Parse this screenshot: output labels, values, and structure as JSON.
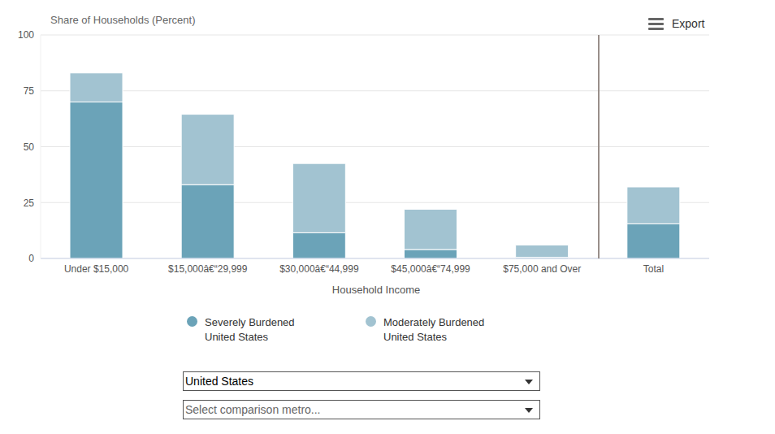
{
  "chart_data": {
    "type": "bar",
    "stacked": true,
    "title": "Share of Households (Percent)",
    "x_label": "Household Income",
    "categories": [
      "Under $15,000",
      "$15,000â€“29,999",
      "$30,000â€“44,999",
      "$45,000â€“74,999",
      "$75,000 and Over",
      "Total"
    ],
    "series": [
      {
        "name": "Severely Burdened United States",
        "color": "#6ba3b8",
        "values": [
          70,
          33,
          11.5,
          4,
          0.5,
          15.5
        ]
      },
      {
        "name": "Moderately Burdened United States",
        "color": "#a2c3d1",
        "values": [
          13,
          31.5,
          31,
          18,
          5.5,
          16.5
        ]
      }
    ],
    "ylim": [
      0,
      100
    ],
    "yticks": [
      0,
      25,
      50,
      75,
      100
    ],
    "grid": true,
    "legend": "bottom",
    "export_label": "Export",
    "dropdowns": [
      "United States",
      "Select comparison metro..."
    ]
  }
}
